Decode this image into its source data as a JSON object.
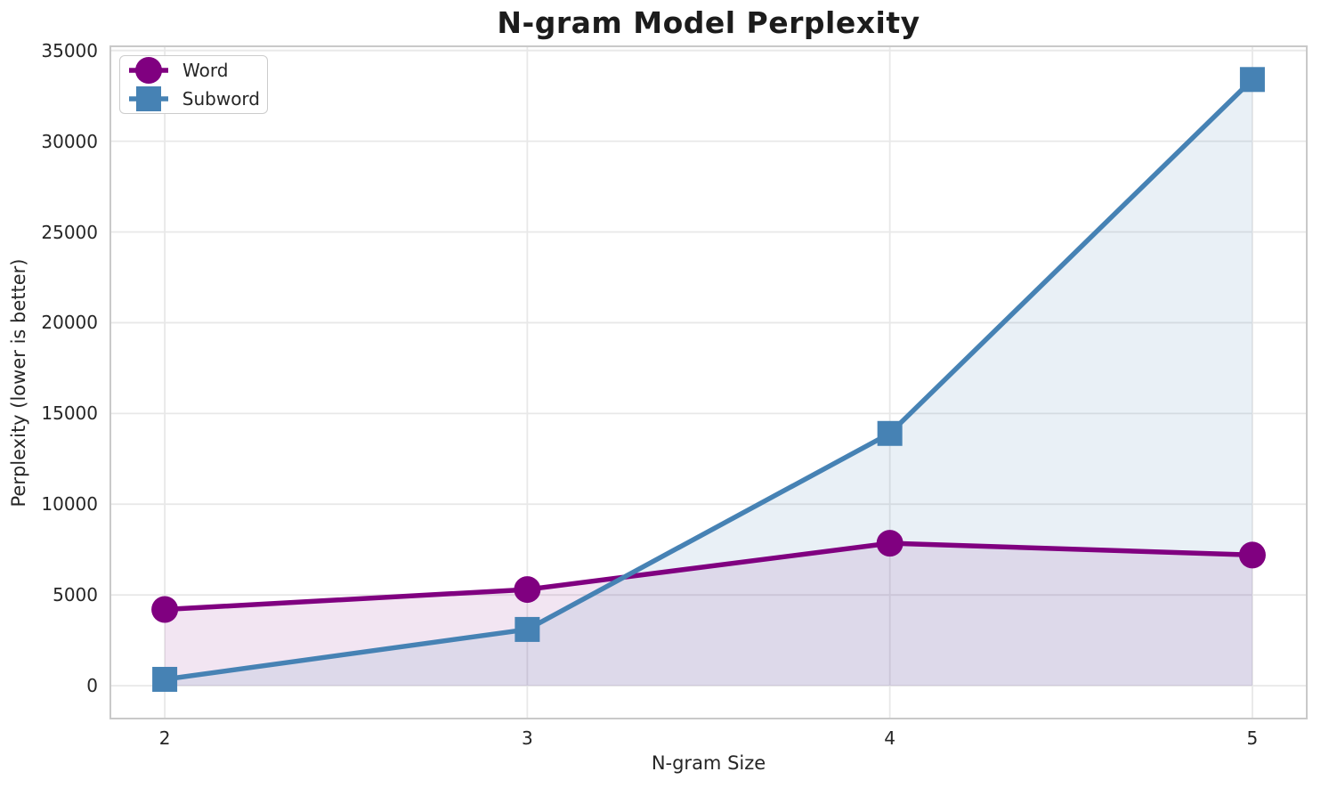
{
  "chart_data": {
    "type": "line",
    "title": "N-gram Model Perplexity",
    "xlabel": "N-gram Size",
    "ylabel": "Perplexity (lower is better)",
    "x": [
      2,
      3,
      4,
      5
    ],
    "series": [
      {
        "name": "Word",
        "marker": "circle",
        "color": "#800080",
        "fill_alpha": 0.1,
        "values": [
          4200,
          5300,
          7850,
          7200
        ]
      },
      {
        "name": "Subword",
        "marker": "square",
        "color": "#4682b4",
        "fill_alpha": 0.12,
        "values": [
          350,
          3100,
          13900,
          33400
        ]
      }
    ],
    "xticks": [
      "2",
      "3",
      "4",
      "5"
    ],
    "xtick_values": [
      2,
      3,
      4,
      5
    ],
    "yticks": [
      "0",
      "5000",
      "10000",
      "15000",
      "20000",
      "25000",
      "30000",
      "35000"
    ],
    "ytick_values": [
      0,
      5000,
      10000,
      15000,
      20000,
      25000,
      30000,
      35000
    ],
    "xlim": [
      1.85,
      5.15
    ],
    "ylim": [
      -1810,
      35230
    ],
    "grid": true,
    "fill_baseline": 0,
    "legend_position": "upper-left"
  }
}
